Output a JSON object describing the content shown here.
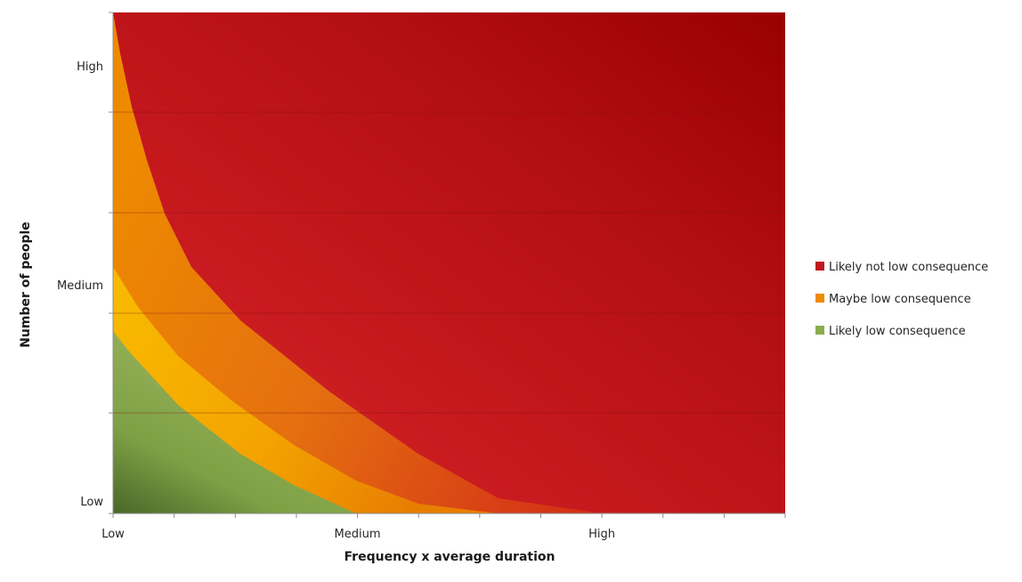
{
  "chart_data": {
    "type": "area",
    "title": "",
    "xlabel": "Frequency x average duration",
    "ylabel": "Number of people",
    "x_ticks": [
      "Low",
      "Medium",
      "High"
    ],
    "y_ticks": [
      "Low",
      "Medium",
      "High"
    ],
    "gridlines": "horizontal",
    "legend_position": "right",
    "series": [
      {
        "name": "Likely not low consequence",
        "color": "#c0191e"
      },
      {
        "name": "Maybe low consequence",
        "color": "#f08a00"
      },
      {
        "name": "Likely low consequence",
        "color": "#8aab4f"
      }
    ]
  }
}
